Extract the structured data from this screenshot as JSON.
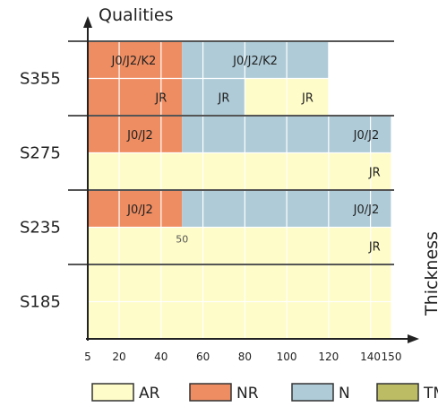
{
  "chart_data": {
    "type": "heatmap",
    "y_axis_title": "Qualities",
    "x_axis_title": "Thickness",
    "x_ticks": [
      5,
      20,
      40,
      60,
      80,
      100,
      120,
      140,
      150
    ],
    "x_range": [
      5,
      150
    ],
    "y_categories": [
      "S355",
      "S275",
      "S235",
      "S185"
    ],
    "legend": [
      {
        "key": "AR",
        "label": "AR",
        "color": "#fefcc8"
      },
      {
        "key": "NR",
        "label": "NR",
        "color": "#ef8d62"
      },
      {
        "key": "N",
        "label": "N",
        "color": "#aecbd7"
      },
      {
        "key": "TM",
        "label": "TM",
        "color": "#bcbc64"
      }
    ],
    "colors": {
      "AR": "#fefcc8",
      "NR": "#ef8d62",
      "N": "#aecbd7",
      "TM": "#bcbc64",
      "grid": "#ffffff",
      "axis": "#222222"
    },
    "rows": [
      {
        "grade": "S355",
        "sub": [
          {
            "segments": [
              {
                "from": 5,
                "to": 50,
                "state": "NR"
              },
              {
                "from": 50,
                "to": 120,
                "state": "N"
              }
            ],
            "labels": [
              {
                "text": "J0/J2/K2",
                "x": 27
              },
              {
                "text": "J0/J2/K2",
                "x": 85
              }
            ]
          },
          {
            "segments": [
              {
                "from": 5,
                "to": 50,
                "state": "NR"
              },
              {
                "from": 50,
                "to": 80,
                "state": "N"
              },
              {
                "from": 80,
                "to": 120,
                "state": "AR"
              }
            ],
            "labels": [
              {
                "text": "JR",
                "x": 40
              },
              {
                "text": "JR",
                "x": 70
              },
              {
                "text": "JR",
                "x": 110
              }
            ]
          }
        ]
      },
      {
        "grade": "S275",
        "sub": [
          {
            "segments": [
              {
                "from": 5,
                "to": 50,
                "state": "NR"
              },
              {
                "from": 50,
                "to": 150,
                "state": "N"
              }
            ],
            "labels": [
              {
                "text": "J0/J2",
                "x": 30
              },
              {
                "text": "J0/J2",
                "x": 138
              }
            ]
          },
          {
            "segments": [
              {
                "from": 5,
                "to": 150,
                "state": "AR"
              }
            ],
            "labels": [
              {
                "text": "JR",
                "x": 142
              }
            ]
          }
        ]
      },
      {
        "grade": "S235",
        "sub": [
          {
            "segments": [
              {
                "from": 5,
                "to": 50,
                "state": "NR"
              },
              {
                "from": 50,
                "to": 150,
                "state": "N"
              }
            ],
            "labels": [
              {
                "text": "J0/J2",
                "x": 30
              },
              {
                "text": "J0/J2",
                "x": 138
              }
            ]
          },
          {
            "segments": [
              {
                "from": 5,
                "to": 150,
                "state": "AR"
              }
            ],
            "labels": [
              {
                "text": "50",
                "x": 50,
                "small": true
              },
              {
                "text": "JR",
                "x": 142
              }
            ]
          }
        ]
      },
      {
        "grade": "S185",
        "sub": [
          {
            "segments": [
              {
                "from": 5,
                "to": 150,
                "state": "AR"
              }
            ],
            "labels": []
          },
          {
            "segments": [
              {
                "from": 5,
                "to": 150,
                "state": "AR"
              }
            ],
            "labels": []
          }
        ]
      }
    ]
  }
}
